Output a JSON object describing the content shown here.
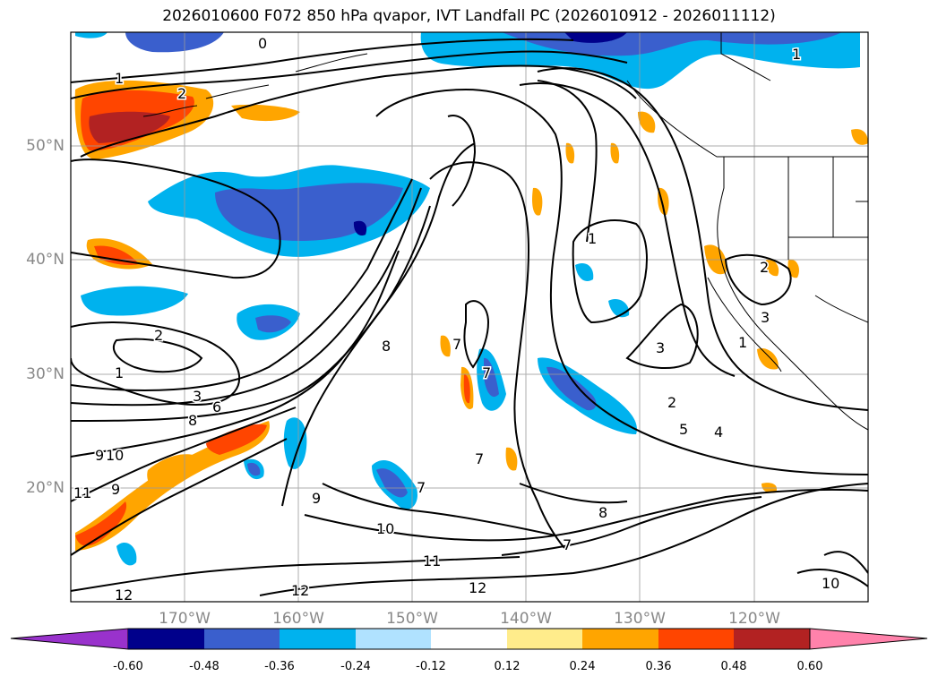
{
  "title": "2026010600 F072 850 hPa qvapor, IVT Landfall PC (2026010912 - 2026011112)",
  "map": {
    "variable": "850 hPa qvapor",
    "overlay": "IVT Landfall PC",
    "lon_range": [
      "180°",
      "110°W"
    ],
    "lat_range": [
      "10°N",
      "60°N"
    ],
    "lon_labels": [
      "170°W",
      "160°W",
      "150°W",
      "140°W",
      "130°W",
      "120°W"
    ],
    "lat_labels": [
      "50°N",
      "40°N",
      "30°N",
      "20°N"
    ],
    "grid": true,
    "contour_labels": [
      "0",
      "1",
      "2",
      "1",
      "1",
      "2",
      "3",
      "2",
      "1",
      "2",
      "3",
      "1",
      "3",
      "4",
      "5",
      "6",
      "7",
      "8",
      "8",
      "9",
      "9",
      "9",
      "10",
      "10",
      "11",
      "11",
      "12",
      "12",
      "12",
      "7",
      "7",
      "7",
      "8",
      "7",
      "10"
    ]
  },
  "colorbar": {
    "levels": [
      "-0.60",
      "-0.48",
      "-0.36",
      "-0.24",
      "-0.12",
      "0.12",
      "0.24",
      "0.36",
      "0.48",
      "0.60"
    ],
    "colors": [
      "#9932cc",
      "#00008b",
      "#3a5fcd",
      "#00b2ee",
      "#b0e2ff",
      "#ffffff",
      "#ffec8b",
      "#ffa500",
      "#ff4500",
      "#b22222",
      "#ff82ab"
    ],
    "extend": "both"
  }
}
